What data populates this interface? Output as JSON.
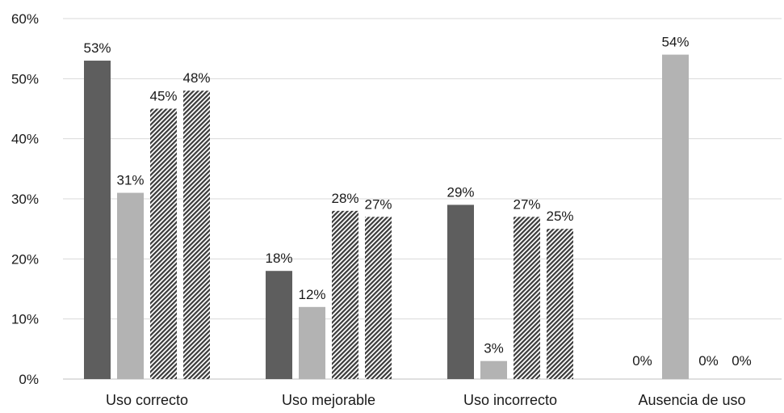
{
  "chart_data": {
    "type": "bar",
    "title": "",
    "xlabel": "",
    "ylabel": "",
    "categories": [
      "Uso correcto",
      "Uso mejorable",
      "Uso incorrecto",
      "Ausencia de uso"
    ],
    "series": [
      {
        "values": [
          53,
          18,
          29,
          0
        ],
        "fill": "#5e5e5e",
        "pattern": "solid"
      },
      {
        "values": [
          31,
          12,
          3,
          54
        ],
        "fill": "#b3b3b3",
        "pattern": "solid"
      },
      {
        "values": [
          45,
          28,
          27,
          0
        ],
        "fill": "#3a3a3a",
        "pattern": "diagonal-hatch"
      },
      {
        "values": [
          48,
          27,
          25,
          0
        ],
        "fill": "#3a3a3a",
        "pattern": "diagonal-hatch"
      }
    ],
    "ylim": [
      0,
      60
    ],
    "yticks": [
      0,
      10,
      20,
      30,
      40,
      50,
      60
    ],
    "tick_suffix": "%",
    "grid": true,
    "legend": "none",
    "data_labels": true
  }
}
